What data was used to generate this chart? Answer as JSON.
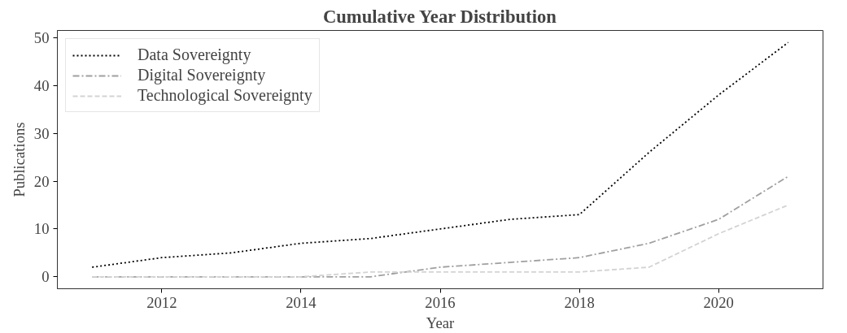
{
  "chart_data": {
    "type": "line",
    "title": "Cumulative Year Distribution",
    "xlabel": "Year",
    "ylabel": "Publications",
    "x": [
      2011,
      2012,
      2013,
      2014,
      2015,
      2016,
      2017,
      2018,
      2019,
      2020,
      2021
    ],
    "series": [
      {
        "name": "Data Sovereignty",
        "color": "#000000",
        "line_style": "dotted",
        "values": [
          2,
          4,
          5,
          7,
          8,
          10,
          12,
          13,
          26,
          38,
          49
        ]
      },
      {
        "name": "Digital Sovereignty",
        "color": "#a0a0a0",
        "line_style": "dashdot",
        "values": [
          0,
          0,
          0,
          0,
          0,
          2,
          3,
          4,
          7,
          12,
          21
        ]
      },
      {
        "name": "Technological Sovereignty",
        "color": "#d3d3d3",
        "line_style": "dashed",
        "values": [
          0,
          0,
          0,
          0,
          1,
          1,
          1,
          1,
          2,
          9,
          15
        ]
      }
    ],
    "xlim": [
      2010.5,
      2021.5
    ],
    "xticks": [
      2012,
      2014,
      2016,
      2018,
      2020
    ],
    "ylim": [
      -2.5,
      51.5
    ],
    "yticks": [
      0,
      10,
      20,
      30,
      40,
      50
    ],
    "grid": false,
    "legend": "top left",
    "marker": "none"
  }
}
